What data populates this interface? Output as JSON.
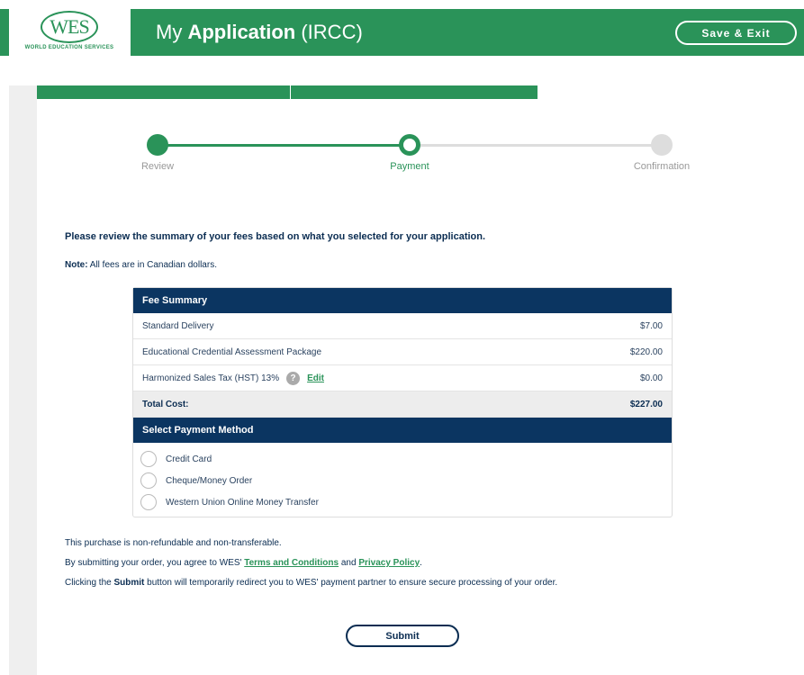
{
  "header": {
    "logo_text": "WES",
    "logo_sub": "WORLD EDUCATION SERVICES",
    "title_prefix": "My",
    "title_bold": "Application",
    "title_suffix": "(IRCC)",
    "save_exit": "Save & Exit"
  },
  "steps": [
    {
      "label": "Review",
      "state": "done"
    },
    {
      "label": "Payment",
      "state": "current"
    },
    {
      "label": "Confirmation",
      "state": "pending"
    }
  ],
  "intro": "Please review the summary of your fees based on what you selected for your application.",
  "note_label": "Note:",
  "note_text": " All fees are in Canadian dollars.",
  "fee_summary": {
    "title": "Fee Summary",
    "rows": [
      {
        "label": "Standard Delivery",
        "amount": "$7.00"
      },
      {
        "label": "Educational Credential Assessment Package",
        "amount": "$220.00"
      },
      {
        "label": "Harmonized Sales Tax (HST) 13%",
        "amount": "$0.00",
        "help": "?",
        "edit": "Edit"
      }
    ],
    "total_label": "Total Cost:",
    "total": "$227.00"
  },
  "payment": {
    "title": "Select Payment Method",
    "options": [
      "Credit Card",
      "Cheque/Money Order",
      "Western Union Online Money Transfer"
    ]
  },
  "footer": {
    "line1": "This purchase is non-refundable and non-transferable.",
    "line2_a": "By submitting your order, you agree to WES' ",
    "terms": "Terms and Conditions",
    "line2_b": " and ",
    "privacy": "Privacy Policy",
    "line2_c": ".",
    "line3_a": "Clicking the ",
    "line3_b": "Submit",
    "line3_c": " button will temporarily redirect you to WES' payment partner to ensure secure processing of your order."
  },
  "submit": "Submit",
  "colors": {
    "green": "#2a9359",
    "navy": "#0b3561"
  }
}
